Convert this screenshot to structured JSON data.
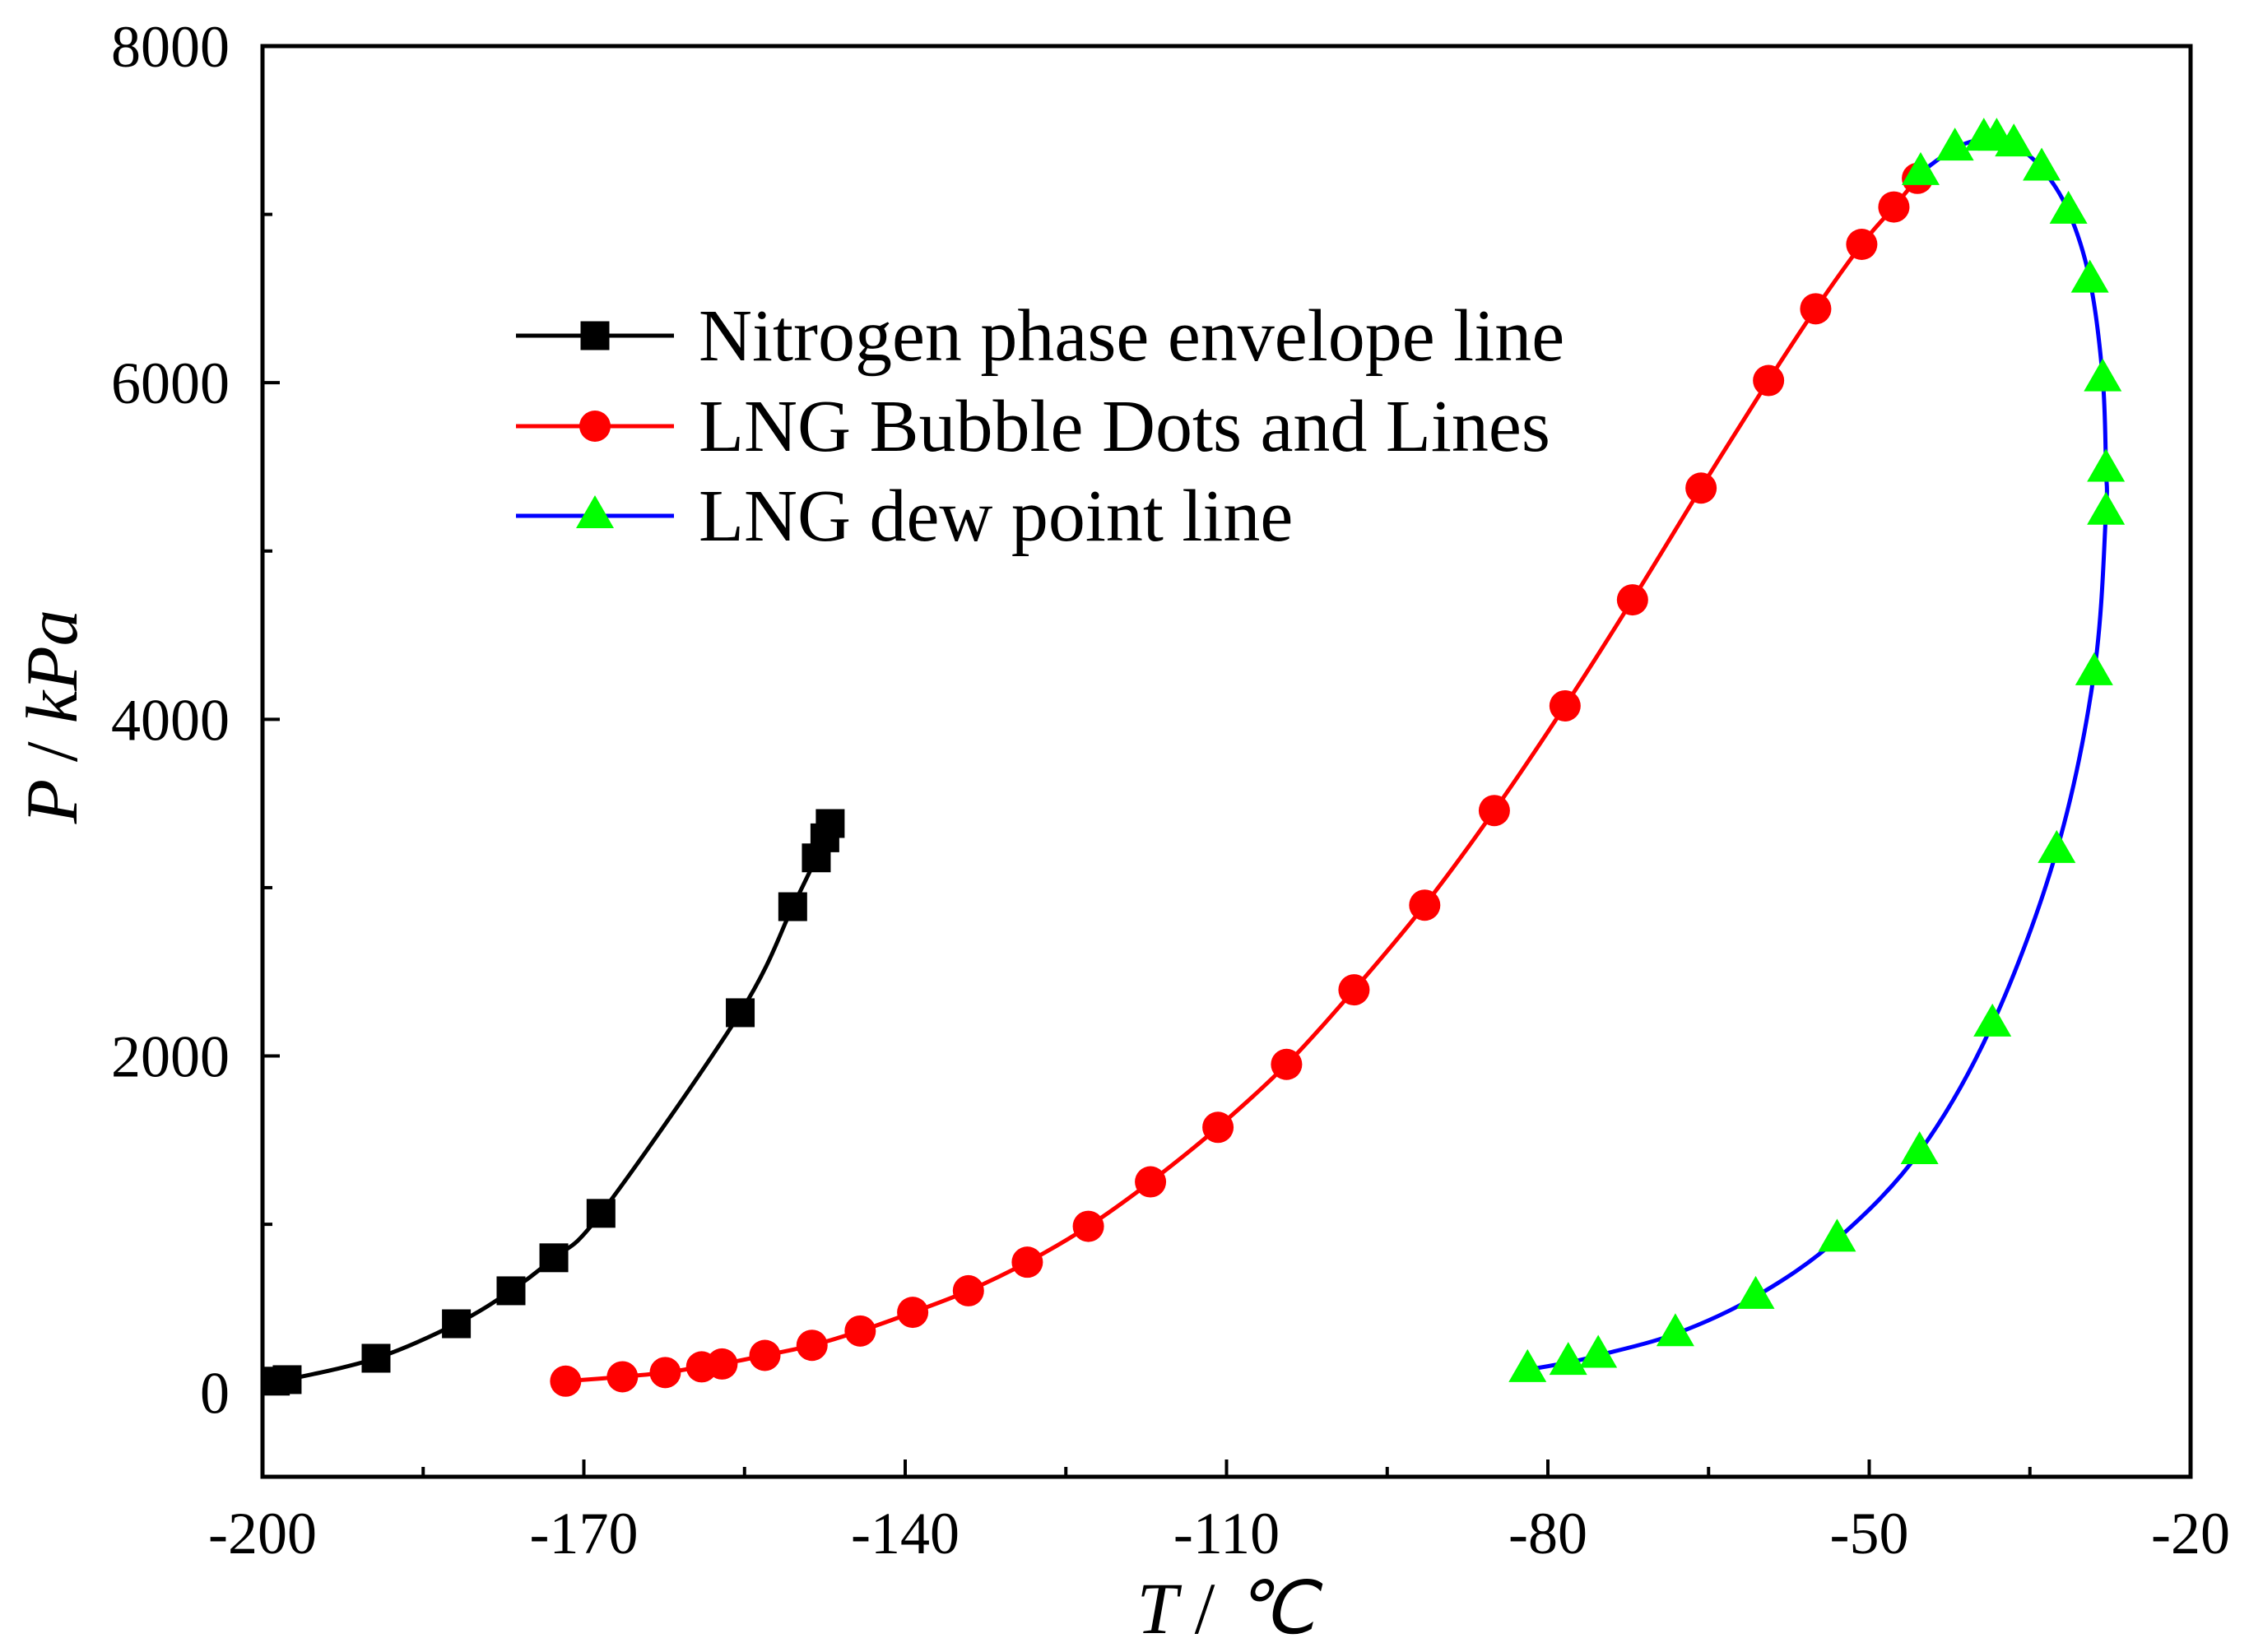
{
  "chart_data": {
    "type": "line",
    "xlabel": "T / ℃",
    "ylabel": "P / kPa",
    "xlim": [
      -200,
      -20
    ],
    "ylim": [
      -500,
      8000
    ],
    "xticks": [
      -200,
      -170,
      -140,
      -110,
      -80,
      -50,
      -20
    ],
    "xminor_step": 15,
    "yticks": [
      0,
      2000,
      4000,
      6000,
      8000
    ],
    "yminor_step": 1000,
    "grid": false,
    "legend": "top-left",
    "series": [
      {
        "name": "Nitrogen phase envelope line",
        "color": "#000000",
        "marker": "square",
        "marker_color": "#000000",
        "x": [
          -198.8,
          -197.7,
          -189.4,
          -181.9,
          -176.8,
          -172.8,
          -168.4,
          -155.4,
          -150.5,
          -148.3,
          -147.5,
          -147.0
        ],
        "y": [
          68,
          77,
          204,
          409,
          605,
          801,
          1065,
          2257,
          2887,
          3177,
          3296,
          3381
        ]
      },
      {
        "name": "LNG Bubble Dots and Lines",
        "color": "#ff0000",
        "marker": "circle",
        "marker_color": "#ff0000",
        "x": [
          -171.7,
          -166.4,
          -162.4,
          -159.0,
          -157.1,
          -153.1,
          -148.7,
          -144.2,
          -139.3,
          -134.1,
          -128.6,
          -122.9,
          -117.1,
          -110.8,
          -104.4,
          -98.1,
          -91.5,
          -85.0,
          -78.4,
          -72.1,
          -65.7,
          -59.4,
          -55.0,
          -50.7,
          -47.7,
          -45.5
        ],
        "y": [
          68,
          94,
          119,
          153,
          170,
          221,
          281,
          366,
          477,
          605,
          775,
          988,
          1252,
          1576,
          1950,
          2393,
          2896,
          3458,
          4080,
          4710,
          5374,
          6013,
          6439,
          6822,
          7044,
          7214
        ]
      },
      {
        "name": "LNG dew point line",
        "color": "#0000ff",
        "marker": "triangle",
        "marker_color": "#00ff00",
        "x": [
          -81.9,
          -78.1,
          -75.3,
          -68.1,
          -60.6,
          -53.0,
          -45.3,
          -38.5,
          -32.5,
          -29.0,
          -27.9,
          -27.9,
          -28.2,
          -29.4,
          -31.4,
          -33.9,
          -36.5,
          -38.1,
          -39.3,
          -42.0,
          -45.2
        ],
        "y": [
          136,
          179,
          221,
          349,
          571,
          911,
          1431,
          2189,
          3220,
          4276,
          5230,
          5485,
          6022,
          6609,
          7018,
          7274,
          7418,
          7452,
          7452,
          7393,
          7248
        ]
      }
    ]
  }
}
